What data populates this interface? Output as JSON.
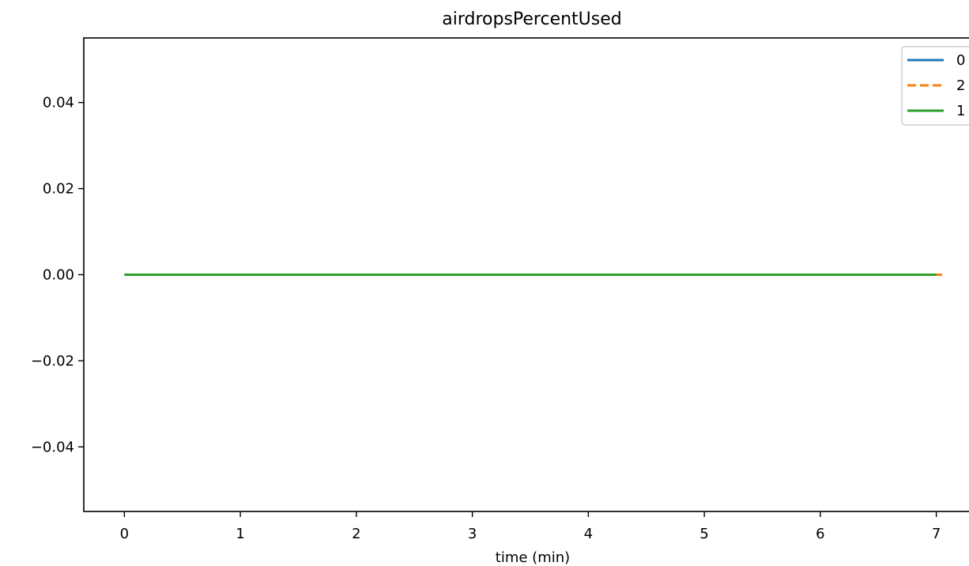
{
  "chart_data": {
    "type": "line",
    "title": "airdropsPercentUsed",
    "xlabel": "time (min)",
    "ylabel": "",
    "xlim": [
      -0.35,
      7.35
    ],
    "ylim": [
      -0.055,
      0.055
    ],
    "xticks": [
      0,
      1,
      2,
      3,
      4,
      5,
      6,
      7
    ],
    "xtick_labels": [
      "0",
      "1",
      "2",
      "3",
      "4",
      "5",
      "6",
      "7"
    ],
    "yticks": [
      -0.04,
      -0.02,
      0.0,
      0.02,
      0.04
    ],
    "ytick_labels": [
      "−0.04",
      "−0.02",
      "0.00",
      "0.02",
      "0.04"
    ],
    "grid": false,
    "legend_position": "top-right",
    "series": [
      {
        "name": "0",
        "color": "#1f77b4",
        "style": "solid",
        "x": [
          0.0,
          7.0
        ],
        "y": [
          0.0,
          0.0
        ]
      },
      {
        "name": "2",
        "color": "#ff7f0e",
        "style": "dashed",
        "x": [
          0.12,
          7.05
        ],
        "y": [
          0.0,
          0.0
        ]
      },
      {
        "name": "1",
        "color": "#2ca02c",
        "style": "solid",
        "x": [
          0.0,
          7.0
        ],
        "y": [
          0.0,
          0.0
        ]
      }
    ]
  }
}
